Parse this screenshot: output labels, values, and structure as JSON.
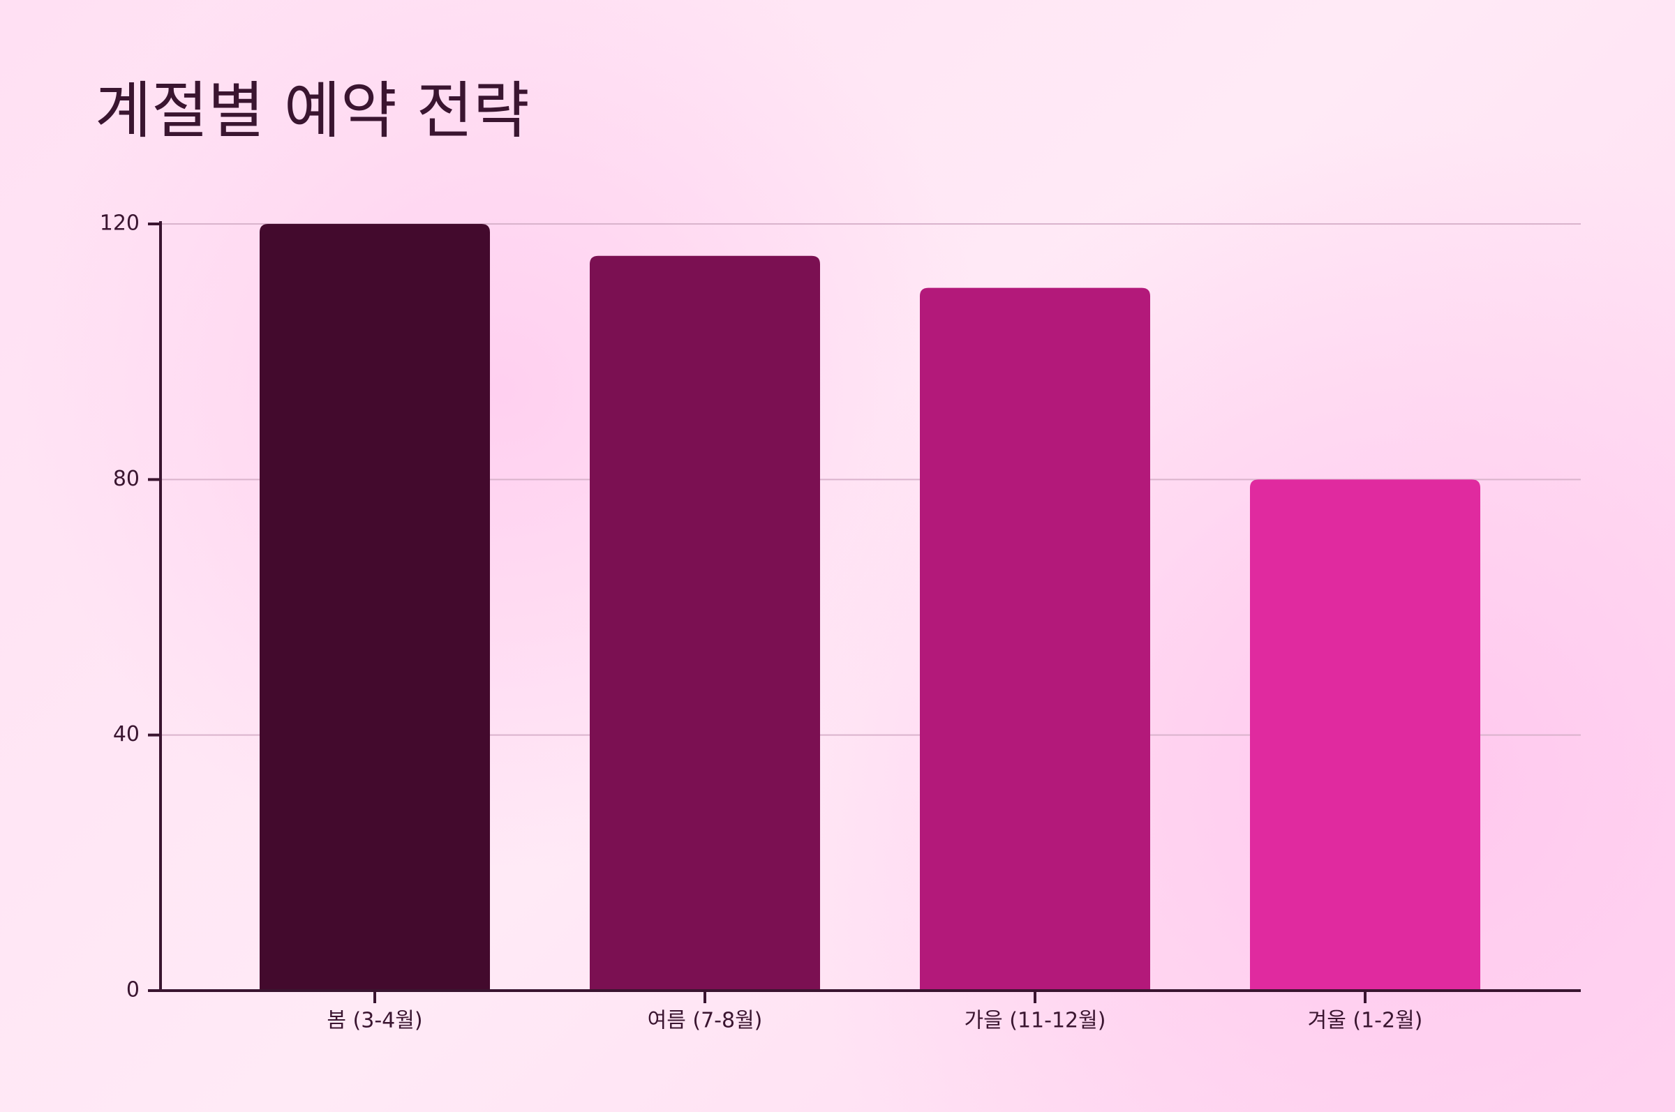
{
  "chart_data": {
    "type": "bar",
    "title": "계절별 예약 전략",
    "categories": [
      "봄 (3-4월)",
      "여름 (7-8월)",
      "가을 (11-12월)",
      "겨울 (1-2월)"
    ],
    "values": [
      120,
      115,
      110,
      80
    ],
    "colors": [
      "#430a2d",
      "#7b1052",
      "#b3197a",
      "#e02a9f"
    ],
    "ylim": [
      0,
      120
    ],
    "yticks": [
      0,
      40,
      80,
      120
    ],
    "grid": true
  }
}
